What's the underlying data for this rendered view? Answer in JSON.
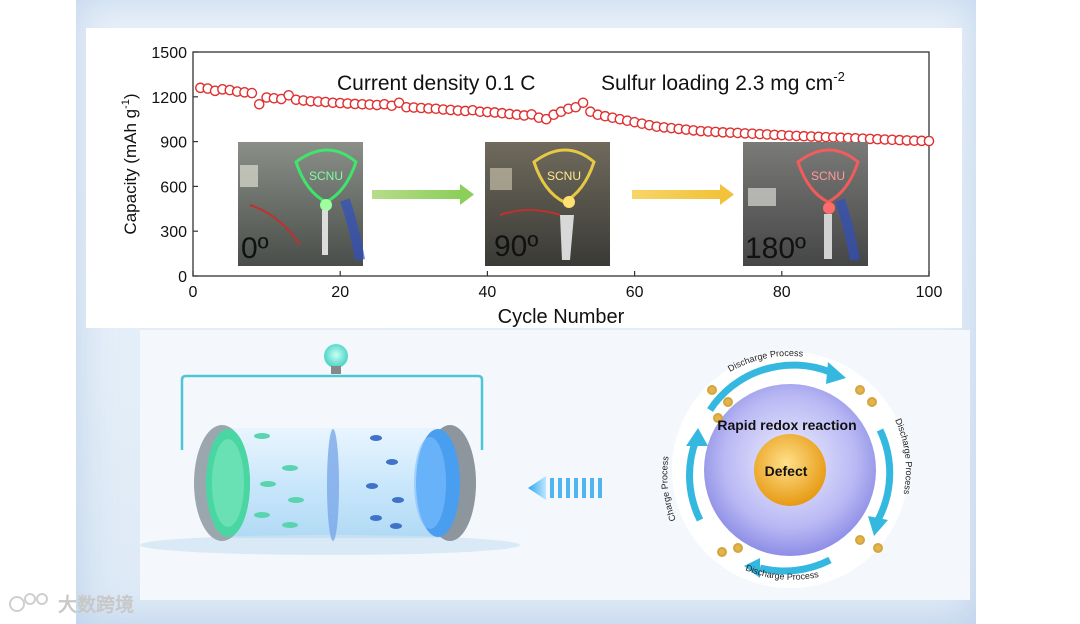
{
  "chart_data": {
    "type": "scatter",
    "xlabel": "Cycle Number",
    "ylabel": "Capacity (mAh g",
    "ylabel_sup": "-1",
    "ylabel_end": ")",
    "xlim": [
      0,
      100
    ],
    "ylim": [
      0,
      1500
    ],
    "xticks": [
      "0",
      "20",
      "40",
      "60",
      "80",
      "100"
    ],
    "yticks": [
      "0",
      "300",
      "600",
      "900",
      "1200",
      "1500"
    ],
    "annotation_left": "Current density 0.1 C",
    "annotation_right": "Sulfur loading 2.3 mg cm",
    "annotation_right_sup": "-2",
    "marker_color": "#e03030",
    "series": [
      {
        "name": "Capacity",
        "x": [
          1,
          2,
          3,
          4,
          5,
          6,
          7,
          8,
          9,
          10,
          11,
          12,
          13,
          14,
          15,
          16,
          17,
          18,
          19,
          20,
          21,
          22,
          23,
          24,
          25,
          26,
          27,
          28,
          29,
          30,
          31,
          32,
          33,
          34,
          35,
          36,
          37,
          38,
          39,
          40,
          41,
          42,
          43,
          44,
          45,
          46,
          47,
          48,
          49,
          50,
          51,
          52,
          53,
          54,
          55,
          56,
          57,
          58,
          59,
          60,
          61,
          62,
          63,
          64,
          65,
          66,
          67,
          68,
          69,
          70,
          71,
          72,
          73,
          74,
          75,
          76,
          77,
          78,
          79,
          80,
          81,
          82,
          83,
          84,
          85,
          86,
          87,
          88,
          89,
          90,
          91,
          92,
          93,
          94,
          95,
          96,
          97,
          98,
          99,
          100
        ],
        "values": [
          1260,
          1255,
          1240,
          1250,
          1245,
          1235,
          1230,
          1225,
          1150,
          1195,
          1190,
          1185,
          1210,
          1180,
          1175,
          1170,
          1168,
          1165,
          1160,
          1158,
          1155,
          1152,
          1150,
          1148,
          1145,
          1150,
          1140,
          1160,
          1130,
          1128,
          1125,
          1122,
          1120,
          1115,
          1112,
          1108,
          1105,
          1110,
          1100,
          1098,
          1095,
          1090,
          1085,
          1080,
          1075,
          1082,
          1060,
          1050,
          1080,
          1100,
          1120,
          1130,
          1160,
          1100,
          1080,
          1070,
          1060,
          1050,
          1040,
          1030,
          1020,
          1010,
          1000,
          995,
          990,
          985,
          980,
          975,
          970,
          968,
          965,
          962,
          960,
          958,
          955,
          953,
          950,
          948,
          945,
          943,
          940,
          938,
          936,
          934,
          932,
          930,
          928,
          926,
          924,
          922,
          920,
          918,
          916,
          914,
          912,
          910,
          908,
          906,
          905,
          904
        ]
      }
    ],
    "photos": [
      {
        "label": "0º",
        "sign": "SCNU",
        "color": "#39f06a"
      },
      {
        "label": "90º",
        "sign": "SCNU",
        "color": "#f6d442"
      },
      {
        "label": "180º",
        "sign": "SCNU",
        "color": "#ff5a5a"
      }
    ]
  },
  "diagram": {
    "center_label": "Defect",
    "ring_title": "Rapid redox reaction",
    "arc_top": "Discharge Process",
    "arc_right": "Discharge Process",
    "arc_bottom": "Discharge Process",
    "arc_left": "Charge Process"
  },
  "watermark": {
    "text": "大数跨境"
  }
}
